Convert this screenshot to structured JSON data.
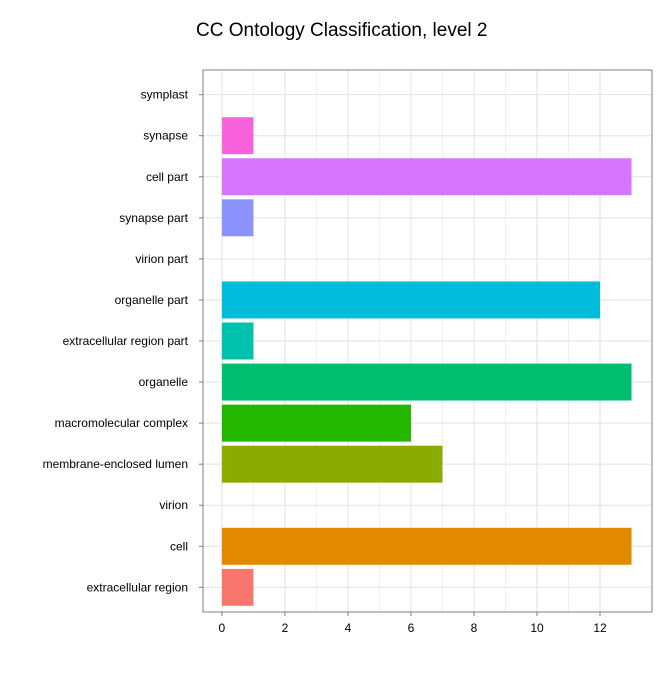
{
  "chart_data": {
    "type": "bar",
    "orientation": "horizontal",
    "title": "CC Ontology Classification, level 2",
    "xlabel": "",
    "ylabel": "",
    "xlim": [
      -0.6,
      13.65
    ],
    "xticks": [
      0,
      2,
      4,
      6,
      8,
      10,
      12
    ],
    "grid": true,
    "legend": "none",
    "categories": [
      "extracellular region",
      "cell",
      "virion",
      "membrane-enclosed lumen",
      "macromolecular complex",
      "organelle",
      "extracellular region part",
      "organelle part",
      "virion part",
      "synapse part",
      "cell part",
      "synapse",
      "symplast"
    ],
    "values": [
      1,
      13,
      0,
      7,
      6,
      13,
      1,
      12,
      0,
      1,
      13,
      1,
      0
    ],
    "colors": [
      "#F8766D",
      "#E18A00",
      "#BE9C00",
      "#8CAB00",
      "#24B700",
      "#00BE70",
      "#00C1AB",
      "#00BBDA",
      "#00ACFC",
      "#8B93FF",
      "#D575FE",
      "#F962DD",
      "#FF65AC"
    ]
  }
}
